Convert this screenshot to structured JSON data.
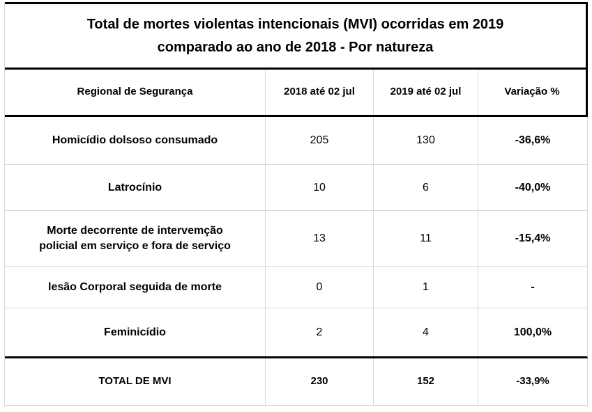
{
  "colors": {
    "border_strong": "#000000",
    "border_light": "#d5d9d7",
    "text": "#000000",
    "background": "#ffffff"
  },
  "chart_data": {
    "type": "table",
    "title": "Total de mortes violentas intencionais (MVI) ocorridas em 2019 comparado ao ano de 2018 - Por natureza",
    "title_lines": [
      "Total de mortes violentas intencionais (MVI) ocorridas em 2019",
      "comparado ao ano de 2018 - Por natureza"
    ],
    "columns": [
      "Regional de Segurança",
      "2018 até 02 jul",
      "2019 até 02 jul",
      "Variação %"
    ],
    "rows": [
      {
        "label": "Homicídio dolsoso consumado",
        "y2018": 205,
        "y2019": 130,
        "variation": "-36,6%"
      },
      {
        "label": "Latrocínio",
        "y2018": 10,
        "y2019": 6,
        "variation": "-40,0%"
      },
      {
        "label": "Morte decorrente de intervemção policial em serviço e fora de serviço",
        "label_lines": [
          "Morte decorrente de intervemção",
          "policial em serviço e fora de serviço"
        ],
        "y2018": 13,
        "y2019": 11,
        "variation": "-15,4%"
      },
      {
        "label": "lesão Corporal seguida de morte",
        "y2018": 0,
        "y2019": 1,
        "variation": "-"
      },
      {
        "label": "Feminicídio",
        "y2018": 2,
        "y2019": 4,
        "variation": "100,0%"
      }
    ],
    "total_row": {
      "label": "TOTAL DE MVI",
      "y2018": 230,
      "y2019": 152,
      "variation": "-33,9%"
    }
  }
}
